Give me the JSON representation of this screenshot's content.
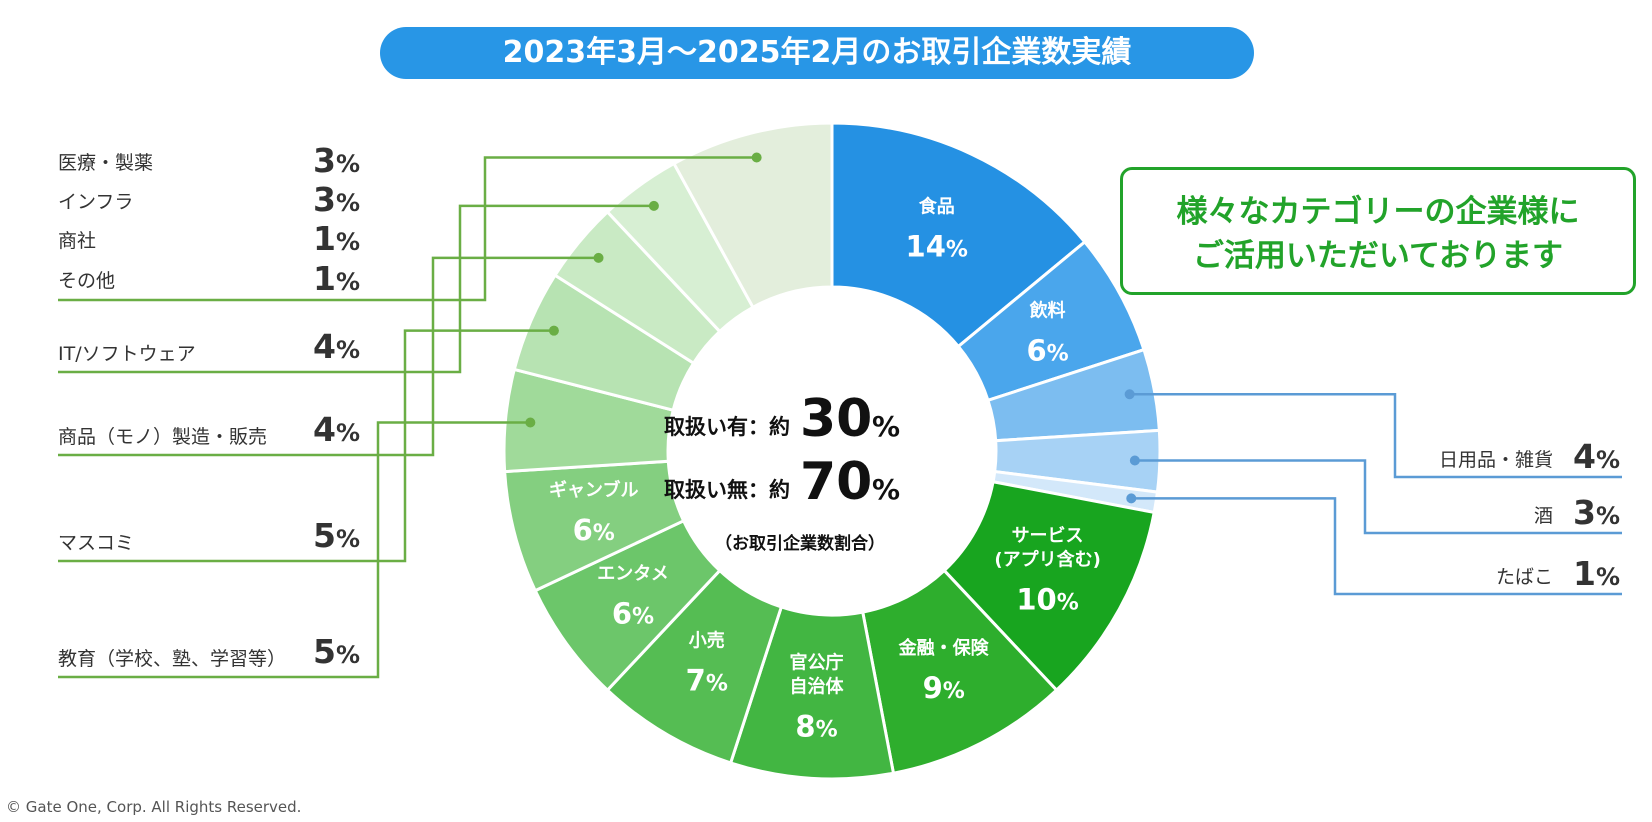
{
  "title": "2023年3月～2025年2月のお取引企業数実績",
  "callout": {
    "line1": "様々なカテゴリーの企業様に",
    "line2": "ご活用いただいております"
  },
  "center": {
    "line1_label": "取扱い有：約",
    "line1_value": "30",
    "line1_unit": "%",
    "line2_label": "取扱い無：約",
    "line2_value": "70",
    "line2_unit": "%",
    "note": "（お取引企業数割合）"
  },
  "copyright": "© Gate One, Corp. All Rights Reserved.",
  "chart_data": {
    "type": "pie",
    "variant": "donut",
    "title": "2023年3月～2025年2月のお取引企業数実績",
    "unit": "%",
    "slices": [
      {
        "name": "食品",
        "value": 14,
        "color": "#2591e3",
        "label": "inside",
        "pct": "14"
      },
      {
        "name": "飲料",
        "value": 6,
        "color": "#4aa6ec",
        "label": "inside",
        "pct": "6"
      },
      {
        "name": "日用品・雑貨",
        "value": 4,
        "color": "#7cbdf0",
        "label": "right",
        "pct": "4"
      },
      {
        "name": "酒",
        "value": 3,
        "color": "#a7d2f5",
        "label": "right",
        "pct": "3"
      },
      {
        "name": "たばこ",
        "value": 1,
        "color": "#d3e8fa",
        "label": "right",
        "pct": "1"
      },
      {
        "name": "サービス\n(アプリ含む)",
        "value": 10,
        "color": "#18a51f",
        "label": "inside",
        "pct": "10"
      },
      {
        "name": "金融・保険",
        "value": 9,
        "color": "#2eae2d",
        "label": "inside",
        "pct": "9"
      },
      {
        "name": "官公庁\n自治体",
        "value": 8,
        "color": "#42b642",
        "label": "inside",
        "pct": "8"
      },
      {
        "name": "小売",
        "value": 7,
        "color": "#55bd53",
        "label": "inside",
        "pct": "7"
      },
      {
        "name": "エンタメ",
        "value": 6,
        "color": "#6cc66a",
        "label": "inside",
        "pct": "6"
      },
      {
        "name": "ギャンブル",
        "value": 6,
        "color": "#84cf80",
        "label": "inside",
        "pct": "6"
      },
      {
        "name": "教育（学校、塾、学習等）",
        "value": 5,
        "color": "#a0da9a",
        "label": "left",
        "pct": "5"
      },
      {
        "name": "マスコミ",
        "value": 5,
        "color": "#b7e3b2",
        "label": "left",
        "pct": "5"
      },
      {
        "name": "商品（モノ）製造・販売",
        "value": 4,
        "color": "#c9eac4",
        "label": "left",
        "pct": "4"
      },
      {
        "name": "IT/ソフトウェア",
        "value": 4,
        "color": "#d7efd3",
        "label": "left",
        "pct": "4"
      },
      {
        "name": "医療・製薬/インフラ/商社/その他",
        "value": 8,
        "color": "#e3eedc",
        "label": "left-group",
        "pct": "8",
        "group": [
          {
            "name": "医療・製薬",
            "pct": "3"
          },
          {
            "name": "インフラ",
            "pct": "3"
          },
          {
            "name": "商社",
            "pct": "1"
          },
          {
            "name": "その他",
            "pct": "1"
          }
        ]
      }
    ]
  }
}
